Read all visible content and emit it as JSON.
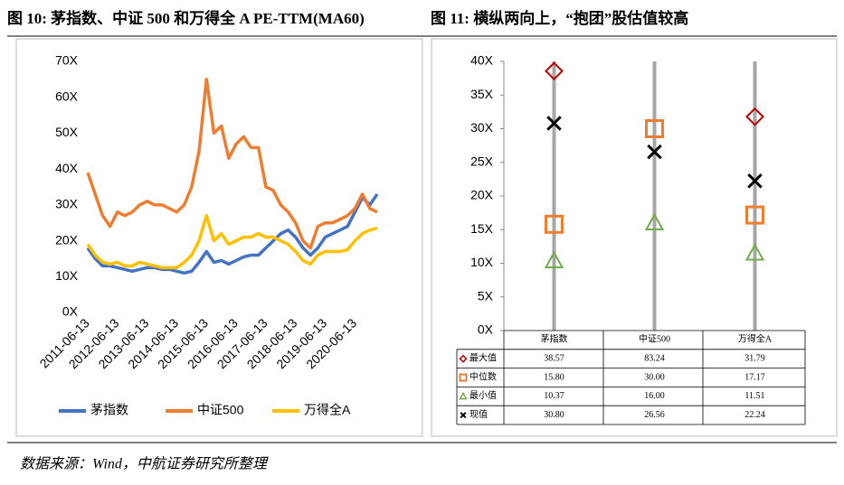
{
  "source": "数据来源：Wind，中航证券研究所整理",
  "chart_data": [
    {
      "type": "line",
      "title": "图 10: 茅指数、中证 500 和万得全 A PE-TTM(MA60)",
      "categories": [
        "2011-06-13",
        null,
        null,
        null,
        "2012-06-13",
        null,
        null,
        null,
        "2013-06-13",
        null,
        null,
        null,
        "2014-06-13",
        null,
        null,
        null,
        "2015-06-13",
        null,
        null,
        null,
        "2016-06-13",
        null,
        null,
        null,
        "2017-06-13",
        null,
        null,
        null,
        "2018-06-13",
        null,
        null,
        null,
        "2019-06-13",
        null,
        null,
        null,
        "2020-06-13",
        null,
        null,
        null
      ],
      "series": [
        {
          "name": "茅指数",
          "color": "#4472c4",
          "values": [
            18,
            15,
            13,
            13,
            12.5,
            12,
            11.5,
            12,
            12.5,
            12.5,
            12,
            12,
            11.5,
            11,
            11.5,
            14,
            17,
            14,
            14.5,
            13.5,
            14.5,
            15.5,
            16,
            16,
            18,
            20,
            22,
            23,
            21,
            18,
            16,
            18,
            21,
            22,
            23,
            24,
            28,
            32,
            30,
            33
          ]
        },
        {
          "name": "中证500",
          "color": "#ed7d31",
          "values": [
            39,
            33,
            27,
            24,
            28,
            27,
            28,
            30,
            31,
            30,
            30,
            29,
            28,
            30,
            35,
            45,
            65,
            50,
            52,
            43,
            47,
            49,
            46,
            46,
            35,
            34,
            30,
            28,
            25,
            20,
            18,
            24,
            25,
            25,
            26,
            27,
            29,
            33,
            29,
            28
          ]
        },
        {
          "name": "万得全A",
          "color": "#ffc000",
          "values": [
            19,
            16,
            14,
            13.5,
            14,
            13,
            13,
            14,
            13.5,
            13,
            12.5,
            12.5,
            12.5,
            14,
            16,
            20,
            27,
            20,
            22,
            19,
            20,
            21,
            21,
            22,
            21,
            21,
            20,
            19,
            17,
            14.5,
            13.5,
            16,
            17,
            17,
            17,
            17.5,
            20,
            22,
            23,
            23.5
          ]
        }
      ],
      "ylim": [
        0,
        70
      ],
      "yticks": [
        {
          "value": 0,
          "label": "0X"
        },
        {
          "value": 10,
          "label": "10X"
        },
        {
          "value": 20,
          "label": "20X"
        },
        {
          "value": 30,
          "label": "30X"
        },
        {
          "value": 40,
          "label": "40X"
        },
        {
          "value": 50,
          "label": "50X"
        },
        {
          "value": 60,
          "label": "60X"
        },
        {
          "value": 70,
          "label": "70X"
        }
      ],
      "grid": false,
      "legend": "bottom"
    },
    {
      "type": "dot",
      "title": "图 11: 横纵两向上，“抱团”股估值较高",
      "categories": [
        "茅指数",
        "中证500",
        "万得全A"
      ],
      "series": [
        {
          "name": "最大值",
          "color": "#c00000",
          "marker": "diamond",
          "values": [
            38.57,
            83.24,
            31.79
          ],
          "value_labels": [
            "38.57",
            "83.24",
            "31.79"
          ]
        },
        {
          "name": "中位数",
          "color": "#ed7d31",
          "marker": "square",
          "values": [
            15.8,
            30,
            17.17
          ],
          "value_labels": [
            "15.80",
            "30.00",
            "17.17"
          ]
        },
        {
          "name": "最小值",
          "color": "#70ad47",
          "marker": "triangle",
          "values": [
            10.37,
            16,
            11.51
          ],
          "value_labels": [
            "10.37",
            "16.00",
            "11.51"
          ]
        },
        {
          "name": "现值",
          "color": "#000000",
          "marker": "x",
          "values": [
            30.8,
            26.56,
            22.24
          ],
          "value_labels": [
            "30.80",
            "26.56",
            "22.24"
          ]
        }
      ],
      "ylim": [
        0,
        40
      ],
      "yticks": [
        {
          "value": 0,
          "label": "0X"
        },
        {
          "value": 5,
          "label": "5X"
        },
        {
          "value": 10,
          "label": "10X"
        },
        {
          "value": 15,
          "label": "15X"
        },
        {
          "value": 20,
          "label": "20X"
        },
        {
          "value": 25,
          "label": "25X"
        },
        {
          "value": 30,
          "label": "30X"
        },
        {
          "value": 35,
          "label": "35X"
        },
        {
          "value": 40,
          "label": "40X"
        }
      ],
      "grid": false,
      "legend": "table"
    }
  ]
}
